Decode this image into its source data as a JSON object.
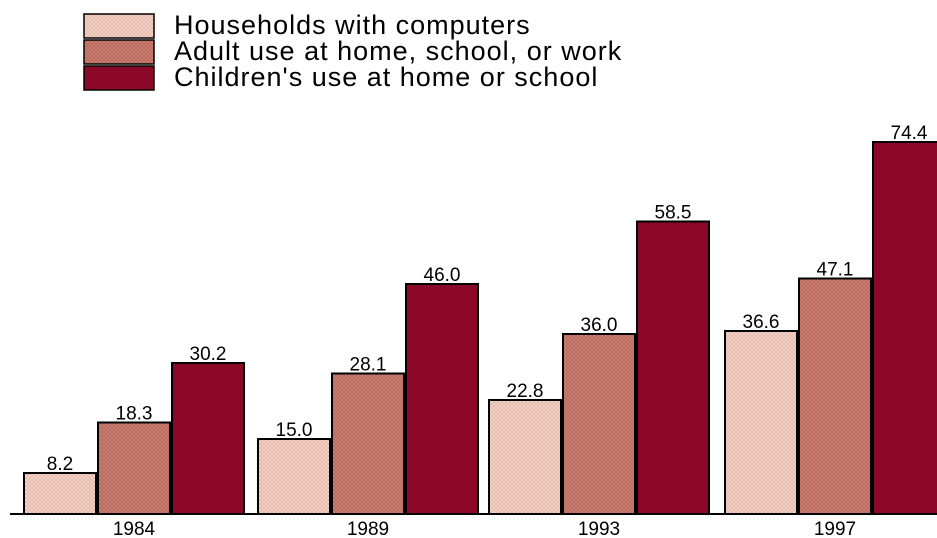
{
  "chart_data": {
    "type": "bar",
    "title": "",
    "xlabel": "",
    "ylabel": "",
    "categories": [
      "1984",
      "1989",
      "1993",
      "1997"
    ],
    "series": [
      {
        "name": "Households with computers",
        "values": [
          8.2,
          15.0,
          22.8,
          36.6
        ],
        "labels": [
          "8.2",
          "15.0",
          "22.8",
          "36.6"
        ],
        "color": "#f0cfc4",
        "pattern": "crosshatch"
      },
      {
        "name": "Adult use at home, school, or work",
        "values": [
          18.3,
          28.1,
          36.0,
          47.1
        ],
        "labels": [
          "18.3",
          "28.1",
          "36.0",
          "47.1"
        ],
        "color": "#c97a6e",
        "pattern": "crosshatch"
      },
      {
        "name": "Children's use at home or school",
        "values": [
          30.2,
          46.0,
          58.5,
          74.4
        ],
        "labels": [
          "30.2",
          "46.0",
          "58.5",
          "74.4"
        ],
        "color": "#8c0828",
        "pattern": "none"
      }
    ],
    "ylim": [
      0,
      74.4
    ],
    "grid": false,
    "legend": "top-left"
  }
}
